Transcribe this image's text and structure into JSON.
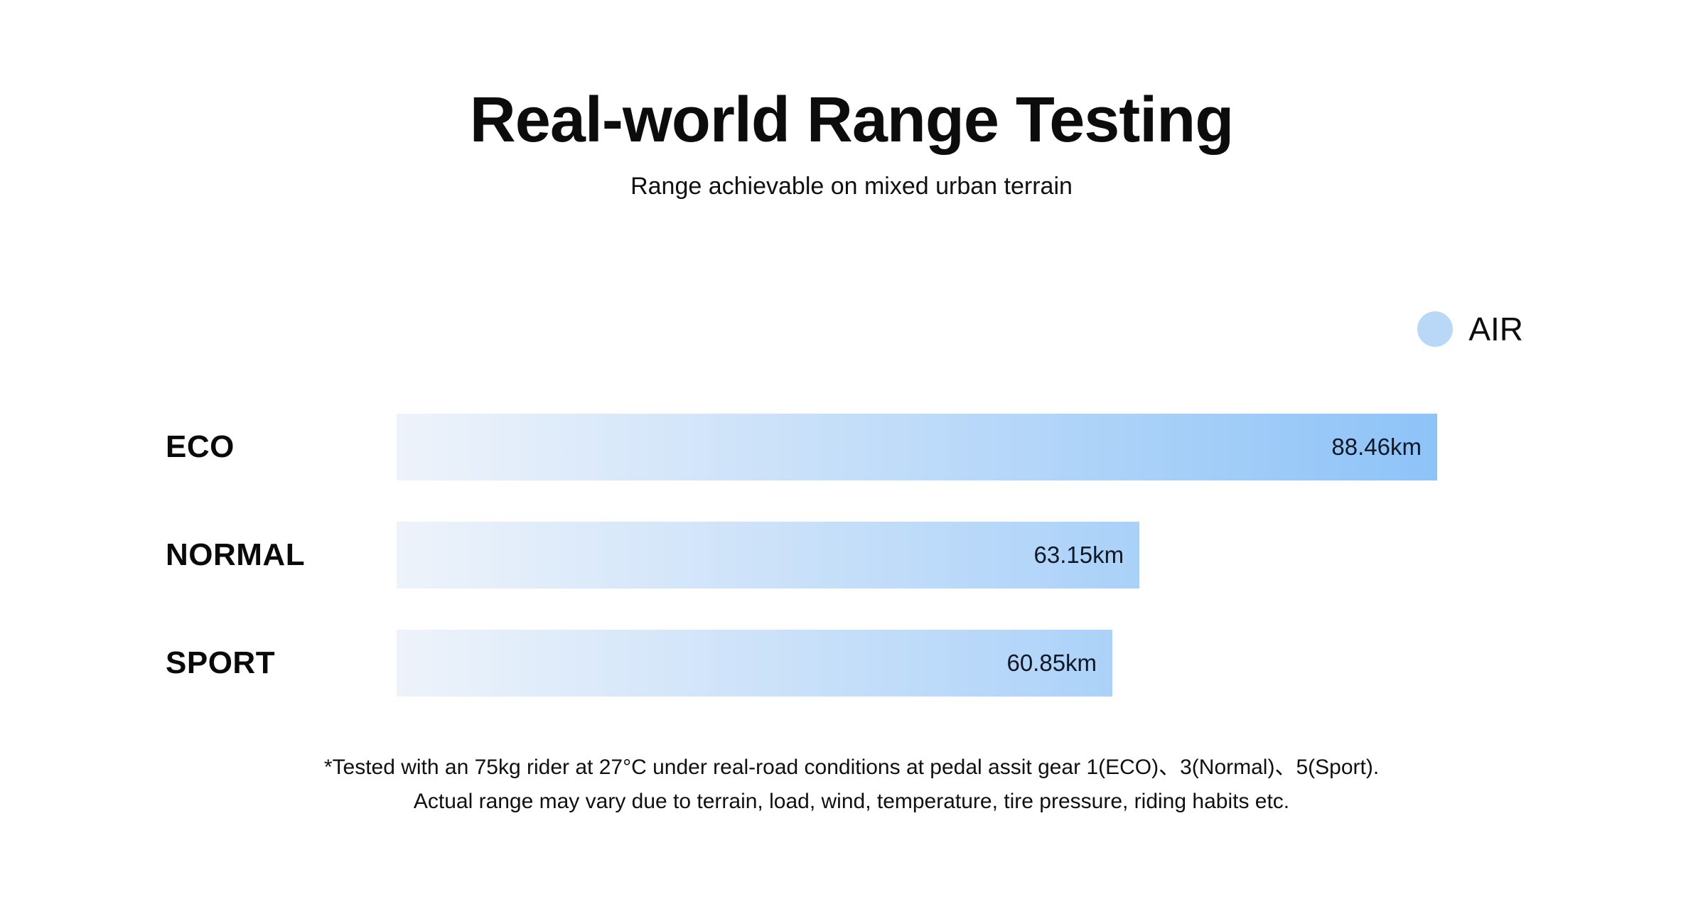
{
  "chart_data": {
    "type": "bar",
    "orientation": "horizontal",
    "title": "Real-world Range Testing",
    "subtitle": "Range achievable on mixed urban terrain",
    "series": [
      {
        "name": "AIR",
        "categories": [
          "ECO",
          "NORMAL",
          "SPORT"
        ],
        "values": [
          88.46,
          63.15,
          60.85
        ],
        "value_labels": [
          "88.46km",
          "63.15km",
          "60.85km"
        ]
      }
    ],
    "unit": "km",
    "xlim": [
      0,
      88.46
    ],
    "grid": false,
    "axes_visible": false,
    "legend_position": "top-right",
    "colors": {
      "bar_gradient_start": "#eef3fa",
      "bar_gradient_end": "#8ec3f8",
      "legend_swatch": "#b9d8f7",
      "value_text": "#101826",
      "text": "#0d0d0d"
    }
  },
  "footnote": {
    "line1": "*Tested with an 75kg rider at 27°C under real-road conditions at pedal assit gear 1(ECO)、3(Normal)、5(Sport).",
    "line2": "Actual range may vary due to terrain, load, wind, temperature, tire pressure, riding habits etc."
  }
}
